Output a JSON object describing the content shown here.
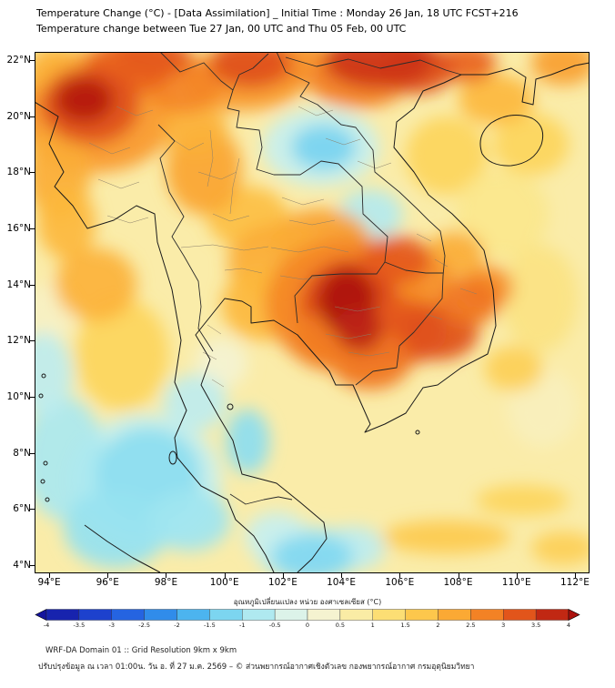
{
  "header": {
    "line1": "Temperature Change (°C) - [Data Assimilation] _ Initial Time : Monday 26 Jan, 18 UTC FCST+216",
    "line2": "Temperature change between Tue 27 Jan, 00 UTC and Thu 05 Feb, 00 UTC"
  },
  "map": {
    "y_ticks": [
      {
        "label": "22°N",
        "lat": 22
      },
      {
        "label": "20°N",
        "lat": 20
      },
      {
        "label": "18°N",
        "lat": 18
      },
      {
        "label": "16°N",
        "lat": 16
      },
      {
        "label": "14°N",
        "lat": 14
      },
      {
        "label": "12°N",
        "lat": 12
      },
      {
        "label": "10°N",
        "lat": 10
      },
      {
        "label": "8°N",
        "lat": 8
      },
      {
        "label": "6°N",
        "lat": 6
      },
      {
        "label": "4°N",
        "lat": 4
      }
    ],
    "x_ticks": [
      {
        "label": "94°E",
        "lon": 94
      },
      {
        "label": "96°E",
        "lon": 96
      },
      {
        "label": "98°E",
        "lon": 98
      },
      {
        "label": "100°E",
        "lon": 100
      },
      {
        "label": "102°E",
        "lon": 102
      },
      {
        "label": "104°E",
        "lon": 104
      },
      {
        "label": "106°E",
        "lon": 106
      },
      {
        "label": "108°E",
        "lon": 108
      },
      {
        "label": "110°E",
        "lon": 110
      },
      {
        "label": "112°E",
        "lon": 112
      }
    ]
  },
  "colorbar": {
    "title": "อุณหภูมิเปลี่ยนแปลง หน่วย องศาเซลเซียส (°C)",
    "tick_labels": [
      "-4",
      "-3.5",
      "-3",
      "-2.5",
      "-2",
      "-1.5",
      "-1",
      "-0.5",
      "0",
      "0.5",
      "1",
      "1.5",
      "2",
      "2.5",
      "3",
      "3.5",
      "4"
    ]
  },
  "footer": {
    "line1": "WRF-DA Domain 01 :: Grid Resolution 9km x 9km",
    "line2": "ปรับปรุงข้อมูล ณ เวลา 01:00น. วัน อ. ที่ 27 ม.ค. 2569 – © ส่วนพยากรณ์อากาศเชิงตัวเลข กองพยากรณ์อากาศ กรมอุตุนิยมวิทยา"
  },
  "chart_data": {
    "type": "heatmap",
    "title": "Temperature Change (°C), WRF-DA Domain 01",
    "units": "°C",
    "region": {
      "lon_min": 93.5,
      "lon_max": 112.5,
      "lat_min": 3.7,
      "lat_max": 22.3
    },
    "value_range": [
      -4,
      4
    ],
    "base_value": 0.7,
    "scale": [
      [
        -4,
        "#14149e"
      ],
      [
        -3,
        "#2050dd"
      ],
      [
        -2,
        "#35a0ee"
      ],
      [
        -1.5,
        "#62c8f0"
      ],
      [
        -1,
        "#96e2f0"
      ],
      [
        -0.5,
        "#c8f0ef"
      ],
      [
        0,
        "#f0f5e2"
      ],
      [
        0.5,
        "#f9f0bd"
      ],
      [
        1,
        "#fbe78c"
      ],
      [
        1.5,
        "#fdd55c"
      ],
      [
        2,
        "#fdb93c"
      ],
      [
        2.5,
        "#f8982c"
      ],
      [
        3,
        "#ee6c1e"
      ],
      [
        3.5,
        "#d63d18"
      ],
      [
        4,
        "#ab120e"
      ]
    ],
    "blobs": [
      [
        96.5,
        11.5,
        1.6,
        2.0,
        1.5
      ],
      [
        94.0,
        13.0,
        0.9,
        1.1,
        0.4
      ],
      [
        99.9,
        11.2,
        0.9,
        0.9,
        0.2
      ],
      [
        107.6,
        18.6,
        1.4,
        1.4,
        1.5
      ],
      [
        110.5,
        19.0,
        1.3,
        1.1,
        1.5
      ],
      [
        109.5,
        16.5,
        1.6,
        1.6,
        1.0
      ],
      [
        110.8,
        13.5,
        1.3,
        1.9,
        1.1
      ],
      [
        110.9,
        9.6,
        1.2,
        1.4,
        0.5
      ],
      [
        107.6,
        5.0,
        2.2,
        0.6,
        1.7
      ],
      [
        110.2,
        6.3,
        1.6,
        0.55,
        1.5
      ],
      [
        111.6,
        4.6,
        1.1,
        0.6,
        1.6
      ],
      [
        109.9,
        11.0,
        1.0,
        0.8,
        1.6
      ],
      [
        100.8,
        16.4,
        1.4,
        1.1,
        1.9
      ],
      [
        103.3,
        18.9,
        2.0,
        1.4,
        -0.5
      ],
      [
        97.3,
        7.0,
        2.6,
        2.4,
        -0.5
      ],
      [
        102.9,
        4.4,
        1.8,
        1.0,
        -0.6
      ],
      [
        94.5,
        7.8,
        1.4,
        2.2,
        -0.8
      ],
      [
        93.8,
        10.8,
        1.0,
        1.5,
        -0.6
      ],
      [
        99.0,
        9.8,
        1.1,
        1.0,
        -0.6
      ],
      [
        105.0,
        16.5,
        1.1,
        0.9,
        -0.7
      ],
      [
        101.8,
        5.0,
        1.1,
        0.9,
        -0.5
      ],
      [
        104.4,
        4.6,
        1.1,
        0.8,
        -0.6
      ],
      [
        95.6,
        20.2,
        2.8,
        2.2,
        2.5
      ],
      [
        94.3,
        18.0,
        1.1,
        1.7,
        2.2
      ],
      [
        94.6,
        16.2,
        1.0,
        1.3,
        2.0
      ],
      [
        95.6,
        14.0,
        1.4,
        1.3,
        2.1
      ],
      [
        99.3,
        18.1,
        1.3,
        1.6,
        2.3
      ],
      [
        99.0,
        19.6,
        1.1,
        0.9,
        2.1
      ],
      [
        100.6,
        21.3,
        2.2,
        1.1,
        2.5
      ],
      [
        102.6,
        21.9,
        1.3,
        0.8,
        2.6
      ],
      [
        104.6,
        21.2,
        1.7,
        0.9,
        2.8
      ],
      [
        98.6,
        21.1,
        1.3,
        1.0,
        2.7
      ],
      [
        94.2,
        21.6,
        1.0,
        0.9,
        2.1
      ],
      [
        109.3,
        20.6,
        1.3,
        0.9,
        2.0
      ],
      [
        111.6,
        21.9,
        1.1,
        0.8,
        2.4
      ],
      [
        103.3,
        15.6,
        1.7,
        1.1,
        2.4
      ],
      [
        102.0,
        14.8,
        1.9,
        1.4,
        2.2
      ],
      [
        101.3,
        13.3,
        1.4,
        1.3,
        2.0
      ],
      [
        104.2,
        13.3,
        2.8,
        2.4,
        2.7
      ],
      [
        109.0,
        13.9,
        0.9,
        0.8,
        2.6
      ],
      [
        107.9,
        15.1,
        1.0,
        0.8,
        2.2
      ],
      [
        106.6,
        14.0,
        1.3,
        1.1,
        2.6
      ],
      [
        96.8,
        21.8,
        1.5,
        1.0,
        3.1
      ],
      [
        97.6,
        22.1,
        1.3,
        0.7,
        3.2
      ],
      [
        100.9,
        21.9,
        1.4,
        0.9,
        3.3
      ],
      [
        108.3,
        21.9,
        1.0,
        0.7,
        3.1
      ],
      [
        106.6,
        21.7,
        1.3,
        0.9,
        3.3
      ],
      [
        105.3,
        22.0,
        1.9,
        1.0,
        3.6
      ],
      [
        95.4,
        20.4,
        1.7,
        1.4,
        3.3
      ],
      [
        104.3,
        13.2,
        1.7,
        1.7,
        3.4
      ],
      [
        105.9,
        14.9,
        1.2,
        0.85,
        3.2
      ],
      [
        106.0,
        12.3,
        1.6,
        1.2,
        3.2
      ],
      [
        107.3,
        12.3,
        1.4,
        1.0,
        3.3
      ],
      [
        108.4,
        13.4,
        1.05,
        0.85,
        2.9
      ],
      [
        105.0,
        11.3,
        1.4,
        1.05,
        2.9
      ],
      [
        103.6,
        12.0,
        1.3,
        1.05,
        2.8
      ],
      [
        95.2,
        20.6,
        1.0,
        0.8,
        3.9
      ],
      [
        104.2,
        13.4,
        1.0,
        1.2,
        4.0
      ],
      [
        104.6,
        12.4,
        0.8,
        0.8,
        3.8
      ],
      [
        103.4,
        18.9,
        1.1,
        0.8,
        -1.3
      ],
      [
        97.4,
        7.2,
        1.8,
        1.7,
        -1.1
      ],
      [
        96.3,
        5.3,
        1.8,
        1.4,
        -1.0
      ],
      [
        98.8,
        5.6,
        1.4,
        1.1,
        -0.9
      ],
      [
        100.8,
        8.4,
        0.75,
        1.15,
        -1.1
      ],
      [
        103.0,
        4.3,
        1.4,
        0.8,
        -1.2
      ]
    ]
  }
}
